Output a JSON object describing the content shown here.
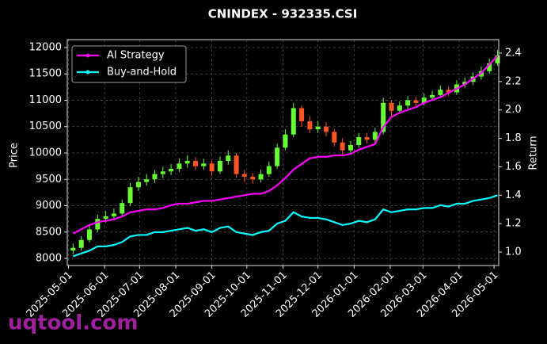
{
  "chart_data": {
    "type": "candlestick",
    "title": "CNINDEX - 932335.CSI",
    "y_label": "Price",
    "y2_label": "Return",
    "watermark": "uqtool.com",
    "legend_loc": "upper left",
    "grid": true,
    "x": [
      "2025-05-05",
      "2025-05-12",
      "2025-05-19",
      "2025-05-26",
      "2025-06-02",
      "2025-06-09",
      "2025-06-16",
      "2025-06-23",
      "2025-06-30",
      "2025-07-07",
      "2025-07-14",
      "2025-07-21",
      "2025-07-28",
      "2025-08-04",
      "2025-08-11",
      "2025-08-18",
      "2025-08-25",
      "2025-09-01",
      "2025-09-08",
      "2025-09-15",
      "2025-09-22",
      "2025-09-29",
      "2025-10-06",
      "2025-10-13",
      "2025-10-20",
      "2025-10-27",
      "2025-11-03",
      "2025-11-10",
      "2025-11-17",
      "2025-11-24",
      "2025-12-01",
      "2025-12-08",
      "2025-12-15",
      "2025-12-22",
      "2025-12-29",
      "2026-01-05",
      "2026-01-12",
      "2026-01-19",
      "2026-01-26",
      "2026-02-02",
      "2026-02-09",
      "2026-02-16",
      "2026-02-23",
      "2026-03-02",
      "2026-03-09",
      "2026-03-16",
      "2026-03-23",
      "2026-03-30",
      "2026-04-06",
      "2026-04-13",
      "2026-04-20",
      "2026-04-27",
      "2026-05-04"
    ],
    "xlim": [
      "2025-04-30",
      "2026-05-05"
    ],
    "xticks": [
      "2025-05-01",
      "2025-06-01",
      "2025-07-01",
      "2025-08-01",
      "2025-09-01",
      "2025-10-01",
      "2025-11-01",
      "2025-12-01",
      "2026-01-01",
      "2026-02-01",
      "2026-03-01",
      "2026-04-01",
      "2026-05-01"
    ],
    "ylim": [
      7865,
      12150
    ],
    "yticks": [
      8000,
      8500,
      9000,
      9500,
      10000,
      10500,
      11000,
      11500,
      12000
    ],
    "y2lim": [
      0.905,
      2.495
    ],
    "y2ticks": [
      1.0,
      1.2,
      1.4,
      1.6,
      1.8,
      2.0,
      2.2,
      2.4
    ],
    "candles": {
      "up_color": "#66ff33",
      "down_color": "#ff5522",
      "open": [
        8150,
        8200,
        8350,
        8550,
        8750,
        8800,
        8850,
        9050,
        9350,
        9450,
        9500,
        9600,
        9650,
        9700,
        9800,
        9850,
        9750,
        9800,
        9650,
        9850,
        9950,
        9600,
        9550,
        9500,
        9600,
        9750,
        10100,
        10350,
        10850,
        10600,
        10450,
        10500,
        10400,
        10200,
        10050,
        10150,
        10300,
        10250,
        10400,
        10950,
        10800,
        10900,
        11000,
        10950,
        11050,
        11100,
        11200,
        11150,
        11300,
        11350,
        11450,
        11550,
        11700
      ],
      "high": [
        8280,
        8420,
        8620,
        8830,
        8900,
        8950,
        9120,
        9430,
        9550,
        9600,
        9680,
        9740,
        9790,
        9900,
        9960,
        9920,
        9890,
        9860,
        9930,
        10050,
        10000,
        9680,
        9620,
        9680,
        9840,
        10180,
        10450,
        10950,
        10900,
        10700,
        10600,
        10580,
        10460,
        10280,
        10230,
        10380,
        10380,
        10480,
        11050,
        11000,
        10980,
        11080,
        11060,
        11130,
        11180,
        11280,
        11260,
        11380,
        11430,
        11530,
        11640,
        11790,
        11950
      ],
      "low": [
        8080,
        8150,
        8300,
        8500,
        8680,
        8720,
        8800,
        9000,
        9280,
        9380,
        9430,
        9520,
        9580,
        9640,
        9720,
        9680,
        9680,
        9570,
        9600,
        9780,
        9530,
        9450,
        9420,
        9440,
        9550,
        9700,
        10050,
        10300,
        10500,
        10380,
        10380,
        10320,
        10120,
        9950,
        9990,
        10100,
        10180,
        10200,
        10350,
        10700,
        10740,
        10830,
        10880,
        10900,
        10990,
        11040,
        11080,
        11100,
        11240,
        11290,
        11390,
        11500,
        11650
      ],
      "close": [
        8200,
        8350,
        8550,
        8750,
        8800,
        8850,
        9050,
        9350,
        9450,
        9500,
        9600,
        9650,
        9700,
        9800,
        9850,
        9750,
        9800,
        9650,
        9850,
        9950,
        9600,
        9550,
        9500,
        9600,
        9750,
        10100,
        10350,
        10850,
        10600,
        10450,
        10500,
        10400,
        10200,
        10050,
        10150,
        10300,
        10250,
        10400,
        10950,
        10800,
        10900,
        11000,
        10950,
        11050,
        11100,
        11200,
        11150,
        11300,
        11350,
        11450,
        11550,
        11700,
        11850
      ]
    },
    "series": [
      {
        "name": "AI Strategy",
        "color": "#ff00ff",
        "axis": "y2",
        "values": [
          1.13,
          1.16,
          1.19,
          1.21,
          1.22,
          1.23,
          1.25,
          1.28,
          1.29,
          1.3,
          1.3,
          1.31,
          1.33,
          1.34,
          1.34,
          1.35,
          1.36,
          1.36,
          1.37,
          1.38,
          1.39,
          1.4,
          1.41,
          1.41,
          1.43,
          1.47,
          1.52,
          1.58,
          1.62,
          1.66,
          1.67,
          1.67,
          1.68,
          1.68,
          1.69,
          1.72,
          1.74,
          1.76,
          1.88,
          1.95,
          1.98,
          2.0,
          2.02,
          2.05,
          2.07,
          2.09,
          2.12,
          2.15,
          2.18,
          2.22,
          2.26,
          2.32,
          2.38
        ]
      },
      {
        "name": "Buy-and-Hold",
        "color": "#00ffff",
        "axis": "y2",
        "values": [
          0.97,
          0.99,
          1.01,
          1.04,
          1.04,
          1.05,
          1.07,
          1.11,
          1.12,
          1.12,
          1.14,
          1.14,
          1.15,
          1.16,
          1.17,
          1.15,
          1.16,
          1.14,
          1.17,
          1.18,
          1.14,
          1.13,
          1.12,
          1.14,
          1.15,
          1.2,
          1.22,
          1.28,
          1.25,
          1.24,
          1.24,
          1.23,
          1.21,
          1.19,
          1.2,
          1.22,
          1.21,
          1.23,
          1.3,
          1.28,
          1.29,
          1.3,
          1.3,
          1.31,
          1.31,
          1.33,
          1.32,
          1.34,
          1.34,
          1.36,
          1.37,
          1.38,
          1.4
        ]
      }
    ]
  }
}
